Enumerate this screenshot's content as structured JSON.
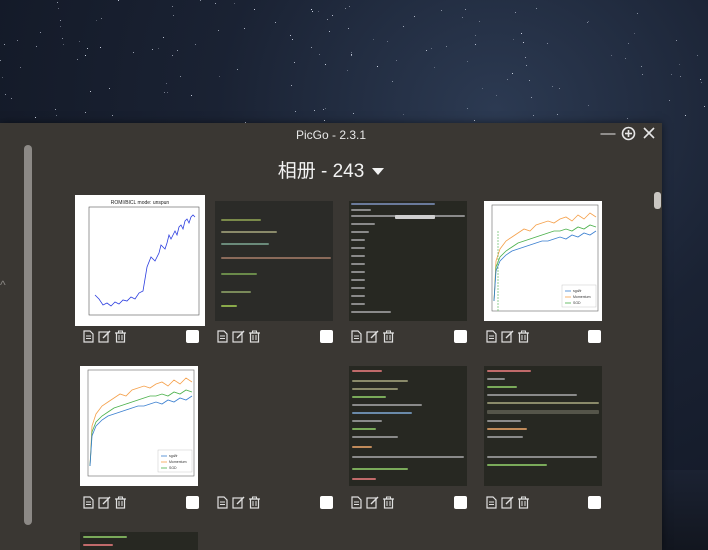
{
  "window": {
    "title": "PicGo - 2.3.1"
  },
  "controls": {
    "minimize_icon": "minimize-icon",
    "maximize_icon": "maximize-icon",
    "close_icon": "close-icon"
  },
  "album": {
    "title": "相册 - 243"
  },
  "item_actions": [
    "copy-link-icon",
    "edit-icon",
    "delete-icon"
  ],
  "images": [
    {
      "caption": "ROMI/BICL mode: unspun",
      "kind": "line-chart-blue"
    },
    {
      "kind": "terminal-blur"
    },
    {
      "kind": "terminal-log"
    },
    {
      "kind": "learning-curves",
      "legend": [
        "sgd/lr",
        "Momentum",
        "SGD"
      ]
    },
    {
      "kind": "learning-curves",
      "legend": [
        "sgd/lr",
        "Momentum",
        "SGD"
      ]
    },
    {
      "kind": "blank"
    },
    {
      "kind": "code-editor"
    },
    {
      "kind": "code-editor"
    },
    {
      "kind": "code-editor-partial"
    }
  ],
  "colors": {
    "window_bg": "#3a3733",
    "accent_blue": "#3b4fd8",
    "check_bg": "#ffffff"
  }
}
